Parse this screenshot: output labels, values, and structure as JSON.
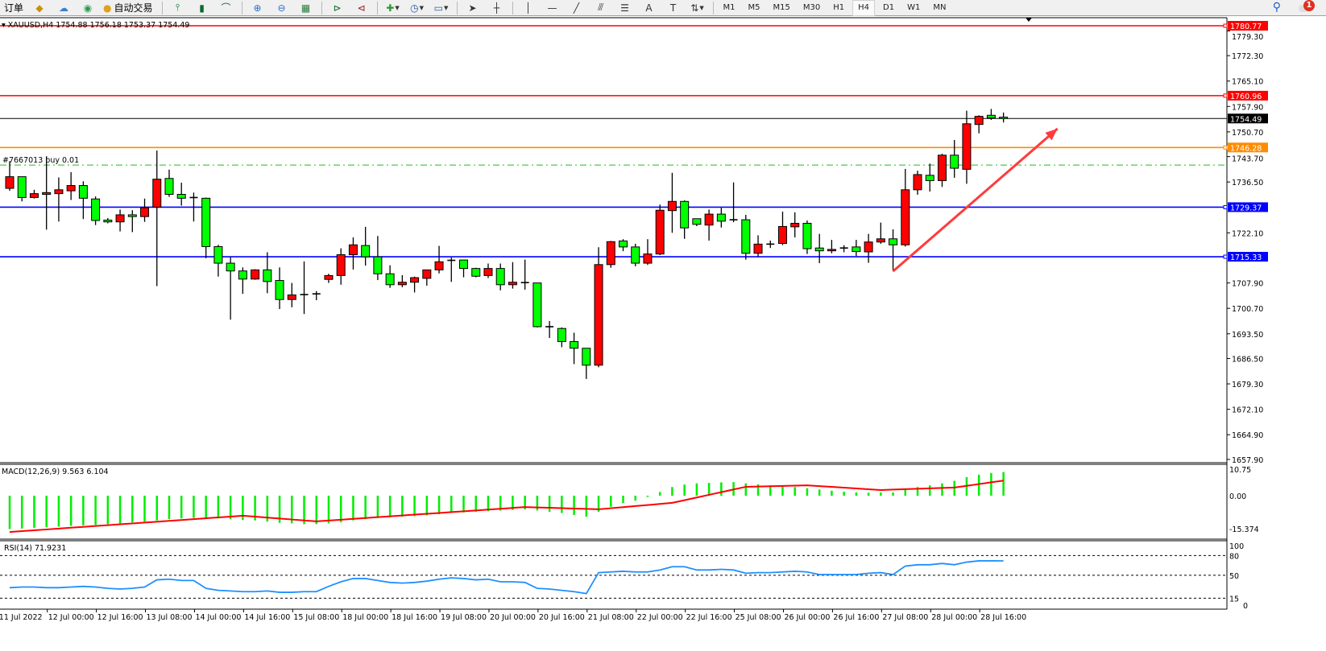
{
  "toolbar": {
    "orders_label": "订单",
    "autotrade_label": "自动交易",
    "icons": [
      "market-watch-icon",
      "cloud-signals-icon",
      "radio-icon",
      "autotrade-icon",
      "bar-chart-icon",
      "candlestick-icon",
      "line-chart-icon",
      "zoom-in-icon",
      "zoom-out-icon",
      "tile-windows-icon",
      "autoscroll-icon",
      "chart-shift-icon",
      "indicators-icon",
      "periods-icon",
      "templates-icon",
      "cursor-icon",
      "crosshair-icon",
      "vertical-line-icon",
      "horizontal-line-icon",
      "trendline-icon",
      "fibonacci-fan-icon",
      "fibonacci-retracement-icon",
      "text-icon",
      "text-label-icon",
      "arrows-icon"
    ],
    "timeframes": [
      "M1",
      "M5",
      "M15",
      "M30",
      "H1",
      "H4",
      "D1",
      "W1",
      "MN"
    ],
    "selected_timeframe": "H4",
    "notification_count": "1"
  },
  "chart": {
    "header": "XAUUSD,H4  1754.88 1756.18 1753.37 1754.49",
    "symbol": "XAUUSD",
    "timeframe": "H4",
    "order_label": "#7667013 buy 0.01",
    "colors": {
      "bull": "#ff0000",
      "bear": "#00ff00",
      "resistance": "#ff0000",
      "orange": "#ff8c00",
      "support": "#0000ff",
      "order": "#22bb22",
      "arrow": "#ff3b3b"
    },
    "price_axis": [
      "1779.30",
      "1772.30",
      "1765.10",
      "1757.90",
      "1750.70",
      "1743.70",
      "1736.50",
      "1722.10",
      "1707.90",
      "1700.70",
      "1693.50",
      "1686.50",
      "1679.30",
      "1672.10",
      "1664.90",
      "1657.90"
    ],
    "price_range": [
      1657.9,
      1780.77
    ],
    "horizontal_lines": [
      {
        "price": 1780.77,
        "label": "1780.77",
        "color": "#ff0000"
      },
      {
        "price": 1760.96,
        "label": "1760.96",
        "color": "#ff0000"
      },
      {
        "price": 1746.28,
        "label": "1746.28",
        "color": "#ff8c00"
      },
      {
        "price": 1729.37,
        "label": "1729.37",
        "color": "#0000ff"
      },
      {
        "price": 1715.33,
        "label": "1715.33",
        "color": "#0000ff"
      }
    ],
    "current_price": {
      "price": 1754.49,
      "label": "1754.49"
    },
    "order_line_price": 1741.3,
    "arrow": {
      "from_bar": 73,
      "from_price": 1711.2,
      "to_bar": 86.4,
      "to_price": 1751.6
    },
    "time_axis": [
      "11 Jul 2022",
      "12 Jul 00:00",
      "12 Jul 16:00",
      "13 Jul 08:00",
      "14 Jul 00:00",
      "14 Jul 16:00",
      "15 Jul 08:00",
      "18 Jul 00:00",
      "18 Jul 16:00",
      "19 Jul 08:00",
      "20 Jul 00:00",
      "20 Jul 16:00",
      "21 Jul 08:00",
      "22 Jul 00:00",
      "22 Jul 16:00",
      "25 Jul 08:00",
      "26 Jul 00:00",
      "26 Jul 16:00",
      "27 Jul 08:00",
      "28 Jul 00:00",
      "28 Jul 16:00"
    ],
    "candles_ohlc": [
      [
        1734.7,
        1742.4,
        1734.0,
        1738.0
      ],
      [
        1738.0,
        1738.0,
        1731.0,
        1732.1
      ],
      [
        1732.1,
        1734.3,
        1731.8,
        1733.2
      ],
      [
        1733.0,
        1743.8,
        1723.0,
        1733.5
      ],
      [
        1733.2,
        1737.8,
        1725.3,
        1734.3
      ],
      [
        1734.0,
        1739.3,
        1731.4,
        1735.5
      ],
      [
        1735.5,
        1736.7,
        1726.0,
        1731.9
      ],
      [
        1731.7,
        1732.4,
        1724.3,
        1725.6
      ],
      [
        1725.7,
        1726.3,
        1724.8,
        1725.2
      ],
      [
        1725.2,
        1728.7,
        1722.5,
        1727.2
      ],
      [
        1727.2,
        1728.5,
        1722.3,
        1726.7
      ],
      [
        1726.7,
        1731.8,
        1725.2,
        1729.2
      ],
      [
        1729.4,
        1745.4,
        1707.0,
        1737.3
      ],
      [
        1737.5,
        1740.0,
        1732.3,
        1733.0
      ],
      [
        1733.0,
        1736.3,
        1729.8,
        1731.9
      ],
      [
        1732.1,
        1733.5,
        1725.3,
        1732.0
      ],
      [
        1731.9,
        1732.1,
        1714.9,
        1718.2
      ],
      [
        1718.2,
        1718.7,
        1709.7,
        1713.5
      ],
      [
        1713.5,
        1715.2,
        1697.5,
        1711.3
      ],
      [
        1711.3,
        1712.3,
        1704.8,
        1709.0
      ],
      [
        1709.0,
        1711.8,
        1708.8,
        1711.6
      ],
      [
        1711.6,
        1716.6,
        1705.0,
        1708.3
      ],
      [
        1708.6,
        1712.3,
        1700.5,
        1703.2
      ],
      [
        1703.2,
        1707.9,
        1701.0,
        1704.5
      ],
      [
        1704.6,
        1714.0,
        1699.1,
        1704.5
      ],
      [
        1704.8,
        1705.6,
        1703.0,
        1704.7
      ],
      [
        1708.9,
        1710.5,
        1707.9,
        1710.0
      ],
      [
        1710.0,
        1717.7,
        1707.4,
        1715.9
      ],
      [
        1715.9,
        1720.8,
        1711.7,
        1718.7
      ],
      [
        1718.5,
        1723.8,
        1712.8,
        1715.3
      ],
      [
        1715.3,
        1721.2,
        1708.7,
        1710.5
      ],
      [
        1710.5,
        1712.9,
        1706.5,
        1707.4
      ],
      [
        1707.4,
        1710.1,
        1706.7,
        1708.1
      ],
      [
        1708.1,
        1709.7,
        1705.2,
        1709.4
      ],
      [
        1709.2,
        1711.6,
        1707.1,
        1711.6
      ],
      [
        1711.6,
        1718.4,
        1710.6,
        1713.9
      ],
      [
        1714.3,
        1715.1,
        1708.2,
        1714.2
      ],
      [
        1714.4,
        1714.4,
        1709.5,
        1712.0
      ],
      [
        1712.0,
        1712.2,
        1709.5,
        1709.8
      ],
      [
        1710.0,
        1713.4,
        1709.3,
        1712.0
      ],
      [
        1712.0,
        1713.4,
        1705.8,
        1707.4
      ],
      [
        1707.4,
        1713.8,
        1706.3,
        1708.1
      ],
      [
        1708.0,
        1714.5,
        1706.0,
        1707.9
      ],
      [
        1707.9,
        1707.9,
        1695.3,
        1695.5
      ],
      [
        1695.5,
        1697.1,
        1692.3,
        1695.4
      ],
      [
        1695.0,
        1695.3,
        1689.7,
        1691.3
      ],
      [
        1691.3,
        1693.8,
        1684.9,
        1689.4
      ],
      [
        1689.4,
        1689.4,
        1680.7,
        1684.6
      ],
      [
        1684.6,
        1718.0,
        1684.0,
        1713.1
      ],
      [
        1713.1,
        1719.8,
        1712.2,
        1719.6
      ],
      [
        1719.8,
        1720.3,
        1716.9,
        1718.1
      ],
      [
        1718.1,
        1719.0,
        1712.6,
        1713.5
      ],
      [
        1713.5,
        1720.3,
        1713.0,
        1716.1
      ],
      [
        1716.1,
        1730.1,
        1715.8,
        1728.5
      ],
      [
        1728.4,
        1739.1,
        1722.1,
        1731.0
      ],
      [
        1731.0,
        1731.3,
        1720.4,
        1723.5
      ],
      [
        1726.1,
        1726.1,
        1724.0,
        1724.5
      ],
      [
        1724.3,
        1728.7,
        1719.9,
        1727.4
      ],
      [
        1727.4,
        1729.2,
        1723.6,
        1725.4
      ],
      [
        1725.8,
        1736.4,
        1725.1,
        1725.6
      ],
      [
        1725.8,
        1727.2,
        1714.5,
        1716.3
      ],
      [
        1716.3,
        1721.4,
        1715.4,
        1718.9
      ],
      [
        1718.9,
        1719.9,
        1717.8,
        1718.8
      ],
      [
        1719.1,
        1728.1,
        1718.6,
        1723.9
      ],
      [
        1723.8,
        1727.9,
        1720.8,
        1724.8
      ],
      [
        1724.8,
        1725.6,
        1716.1,
        1717.6
      ],
      [
        1717.8,
        1721.8,
        1713.5,
        1717.0
      ],
      [
        1717.0,
        1720.1,
        1716.3,
        1717.4
      ],
      [
        1717.8,
        1718.6,
        1716.6,
        1717.7
      ],
      [
        1718.1,
        1720.1,
        1715.5,
        1716.8
      ],
      [
        1716.7,
        1721.8,
        1713.6,
        1719.5
      ],
      [
        1719.5,
        1725.0,
        1719.0,
        1720.4
      ],
      [
        1720.4,
        1723.1,
        1711.2,
        1718.7
      ],
      [
        1718.7,
        1740.2,
        1718.2,
        1734.3
      ],
      [
        1734.3,
        1739.7,
        1732.9,
        1738.6
      ],
      [
        1738.4,
        1741.7,
        1733.8,
        1736.9
      ],
      [
        1736.9,
        1744.5,
        1735.1,
        1744.1
      ],
      [
        1744.1,
        1748.4,
        1737.7,
        1740.4
      ],
      [
        1740.1,
        1756.7,
        1736.0,
        1753.0
      ],
      [
        1752.8,
        1755.4,
        1750.3,
        1755.1
      ],
      [
        1755.4,
        1757.2,
        1754.1,
        1754.7
      ],
      [
        1754.88,
        1756.18,
        1753.37,
        1754.49
      ]
    ]
  },
  "macd": {
    "label": "MACD(12,26,9) 9.563 6.104",
    "axis": [
      "10.75",
      "0.00",
      "-15.374"
    ],
    "range": [
      -15.374,
      10.75
    ],
    "main": [
      -13.5,
      -13.3,
      -13,
      -12.8,
      -12.5,
      -12.2,
      -12,
      -11.8,
      -11.5,
      -11.2,
      -10.8,
      -10.5,
      -10,
      -9.5,
      -9.2,
      -9,
      -9,
      -9.2,
      -9.5,
      -9.8,
      -10,
      -10.5,
      -11,
      -11.2,
      -11.5,
      -11.5,
      -11.2,
      -10.8,
      -10,
      -9.5,
      -9,
      -8.8,
      -8.5,
      -8.3,
      -8,
      -7.5,
      -7,
      -6.8,
      -6.5,
      -6.3,
      -6,
      -5.8,
      -5.5,
      -6,
      -6.5,
      -7,
      -7.8,
      -8.5,
      -6.5,
      -4.5,
      -3,
      -2,
      -0.5,
      1.5,
      3.5,
      4.5,
      5,
      5.2,
      5.4,
      5.5,
      5,
      4.6,
      4.2,
      4,
      3.5,
      3,
      2.5,
      2,
      1.6,
      1.3,
      1.2,
      1.3,
      1.3,
      2.5,
      3.5,
      4.2,
      5,
      6,
      7.5,
      8.5,
      9.2,
      9.563
    ],
    "signal": [
      -14.7,
      -14.35,
      -14.0,
      -13.66,
      -13.31,
      -12.96,
      -12.62,
      -12.27,
      -11.92,
      -11.57,
      -11.23,
      -10.88,
      -10.53,
      -10.19,
      -9.84,
      -9.49,
      -9.14,
      -8.8,
      -8.45,
      -8.1,
      -8.48,
      -8.87,
      -9.25,
      -9.63,
      -10.02,
      -10.4,
      -10.06,
      -9.72,
      -9.38,
      -9.04,
      -8.69,
      -8.35,
      -8.01,
      -7.67,
      -7.33,
      -6.99,
      -6.65,
      -6.31,
      -5.97,
      -5.62,
      -5.28,
      -4.94,
      -4.6,
      -4.75,
      -4.9,
      -5.05,
      -5.2,
      -5.35,
      -5.5,
      -5.07,
      -4.63,
      -4.2,
      -3.77,
      -3.33,
      -2.9,
      -1.82,
      -0.73,
      0.35,
      1.43,
      2.52,
      3.6,
      3.72,
      3.84,
      3.96,
      4.08,
      4.2,
      3.88,
      3.57,
      3.25,
      2.93,
      2.62,
      2.3,
      2.47,
      2.63,
      2.8,
      2.97,
      3.13,
      3.3,
      4.0,
      4.7,
      5.4,
      6.104
    ],
    "colors": {
      "histogram": "#00ee00",
      "signal": "#ff0000"
    }
  },
  "rsi": {
    "label": "RSI(14) 71.9231",
    "axis": [
      "100",
      "80",
      "50",
      "15",
      "0"
    ],
    "levels": [
      80,
      50,
      15
    ],
    "values": [
      31,
      32,
      32,
      31,
      31,
      32,
      33,
      32,
      30,
      29,
      30,
      32,
      43,
      44,
      42,
      42,
      30,
      27,
      26,
      25,
      25,
      26,
      24,
      24,
      25,
      25,
      33,
      40,
      45,
      45,
      42,
      39,
      38,
      39,
      41,
      44,
      46,
      45,
      43,
      44,
      40,
      40,
      39,
      30,
      29,
      27,
      25,
      22,
      54,
      55,
      56,
      55,
      55,
      58,
      63,
      63,
      58,
      58,
      59,
      58,
      53,
      54,
      54,
      55,
      56,
      55,
      51,
      51,
      51,
      51,
      53,
      54,
      51,
      64,
      66,
      66,
      68,
      66,
      70,
      72,
      72,
      71.92
    ],
    "color": "#1e90ff"
  }
}
